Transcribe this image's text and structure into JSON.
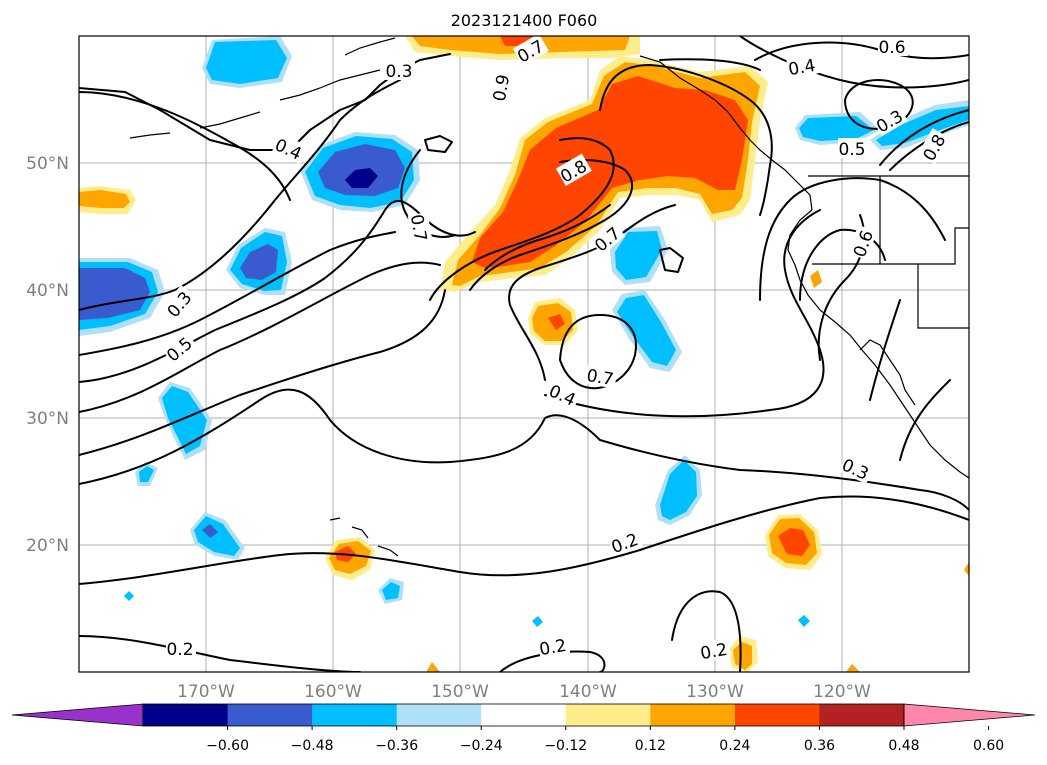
{
  "title": "2023121400 F060",
  "lon_labels": [
    "170°W",
    "160°W",
    "150°W",
    "140°W",
    "130°W",
    "120°W"
  ],
  "lat_labels": [
    "50°N",
    "40°N",
    "30°N",
    "20°N"
  ],
  "contour_labels": [
    "0.6",
    "0.7",
    "0.3",
    "0.9",
    "0.4",
    "0.4",
    "0.3",
    "0.8",
    "0.5",
    "0.8",
    "0.7",
    "0.7",
    "0.6",
    "0.3",
    "0.5",
    "0.7",
    "0.4",
    "0.3",
    "0.2",
    "0.2",
    "0.2",
    "0.2"
  ],
  "colorbar": {
    "colors": [
      "#9932cc",
      "#00008b",
      "#3a5bcd",
      "#00bfff",
      "#b0e0f8",
      "#ffffff",
      "#ffed8c",
      "#ffa500",
      "#ff4500",
      "#b22222",
      "#ff88aa"
    ],
    "tick_labels": [
      "−0.60",
      "−0.48",
      "−0.36",
      "−0.24",
      "−0.12",
      "0.12",
      "0.24",
      "0.36",
      "0.48",
      "0.60"
    ]
  }
}
